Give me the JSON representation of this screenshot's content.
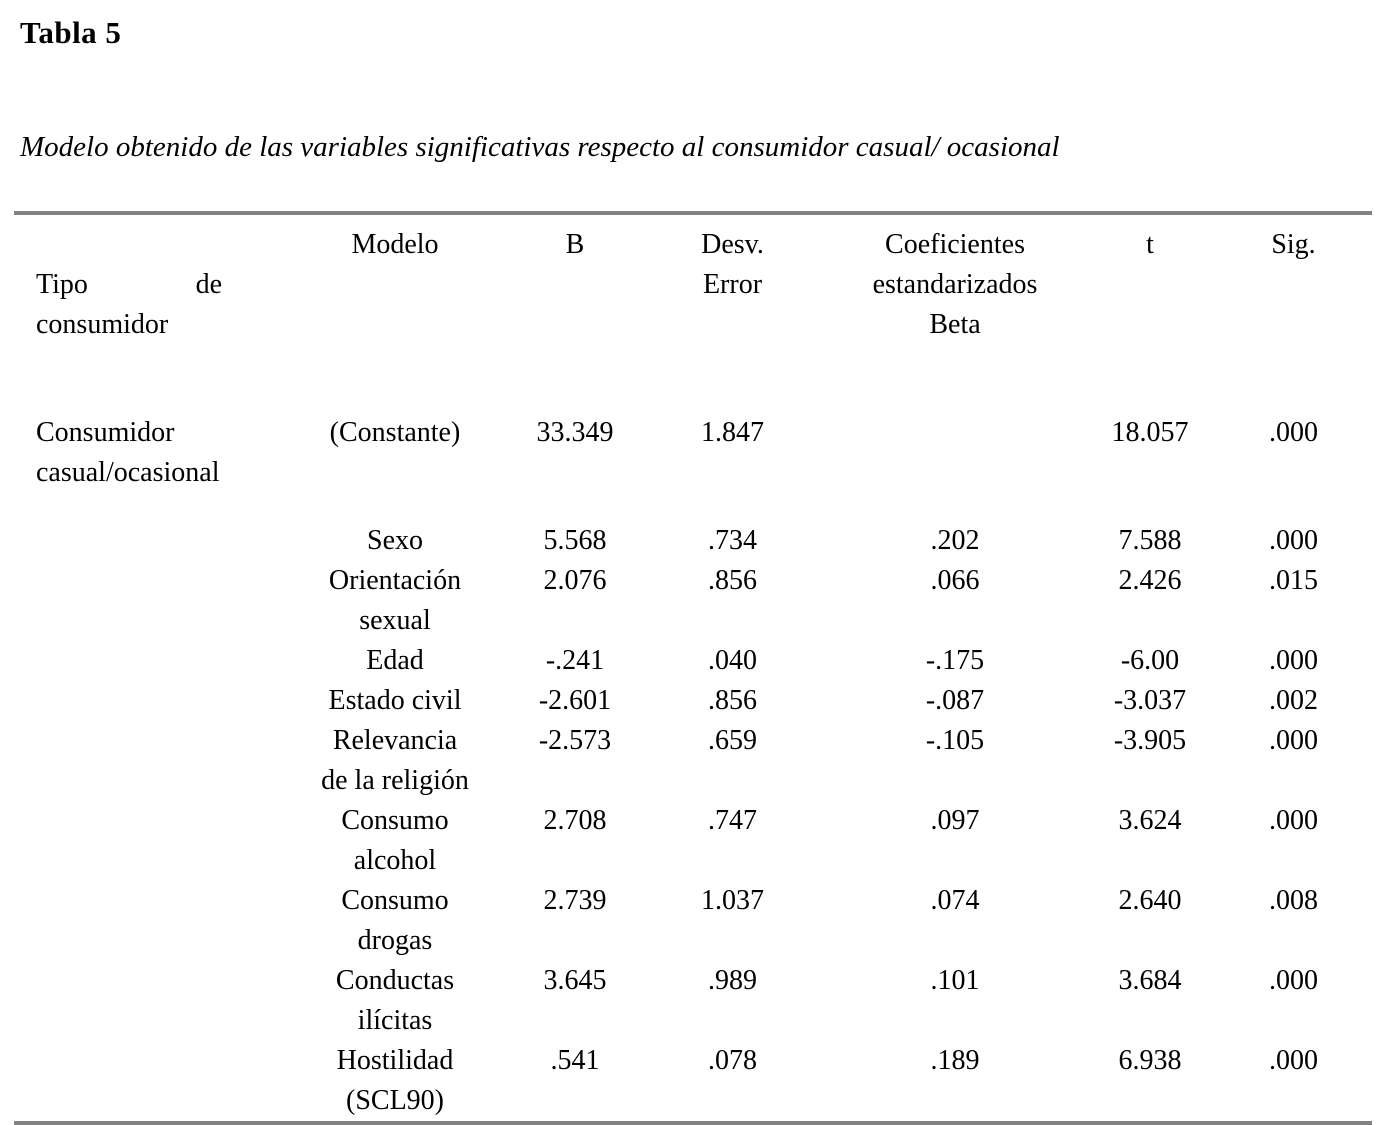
{
  "title": "Tabla 5",
  "caption": "Modelo obtenido de las variables significativas respecto al consumidor casual/ ocasional",
  "rule_color": "#828282",
  "table": {
    "headers": {
      "tipo": "Tipo de consumidor",
      "modelo": "Modelo",
      "b": "B",
      "desv": "Desv.\nError",
      "beta": "Coeficientes\nestandarizados\nBeta",
      "t": "t",
      "sig": "Sig."
    },
    "rows": [
      {
        "tipo": "Consumidor\ncasual/ocasional",
        "modelo": "(Constante)",
        "b": "33.349",
        "desv": "1.847",
        "beta": "",
        "t": "18.057",
        "sig": ".000",
        "gap_below": true
      },
      {
        "tipo": "",
        "modelo": "Sexo",
        "b": "5.568",
        "desv": ".734",
        "beta": ".202",
        "t": "7.588",
        "sig": ".000"
      },
      {
        "tipo": "",
        "modelo": "Orientación\nsexual",
        "b": "2.076",
        "desv": ".856",
        "beta": ".066",
        "t": "2.426",
        "sig": ".015"
      },
      {
        "tipo": "",
        "modelo": "Edad",
        "b": "-.241",
        "desv": ".040",
        "beta": "-.175",
        "t": "-6.00",
        "sig": ".000"
      },
      {
        "tipo": "",
        "modelo": "Estado civil",
        "b": "-2.601",
        "desv": ".856",
        "beta": "-.087",
        "t": "-3.037",
        "sig": ".002"
      },
      {
        "tipo": "",
        "modelo": "Relevancia\nde la religión",
        "b": "-2.573",
        "desv": ".659",
        "beta": "-.105",
        "t": "-3.905",
        "sig": ".000"
      },
      {
        "tipo": "",
        "modelo": "Consumo\nalcohol",
        "b": "2.708",
        "desv": ".747",
        "beta": ".097",
        "t": "3.624",
        "sig": ".000"
      },
      {
        "tipo": "",
        "modelo": "Consumo\ndrogas",
        "b": "2.739",
        "desv": "1.037",
        "beta": ".074",
        "t": "2.640",
        "sig": ".008"
      },
      {
        "tipo": "",
        "modelo": "Conductas\nilícitas",
        "b": "3.645",
        "desv": ".989",
        "beta": ".101",
        "t": "3.684",
        "sig": ".000"
      },
      {
        "tipo": "",
        "modelo": "Hostilidad\n(SCL90)",
        "b": ".541",
        "desv": ".078",
        "beta": ".189",
        "t": "6.938",
        "sig": ".000"
      }
    ]
  }
}
